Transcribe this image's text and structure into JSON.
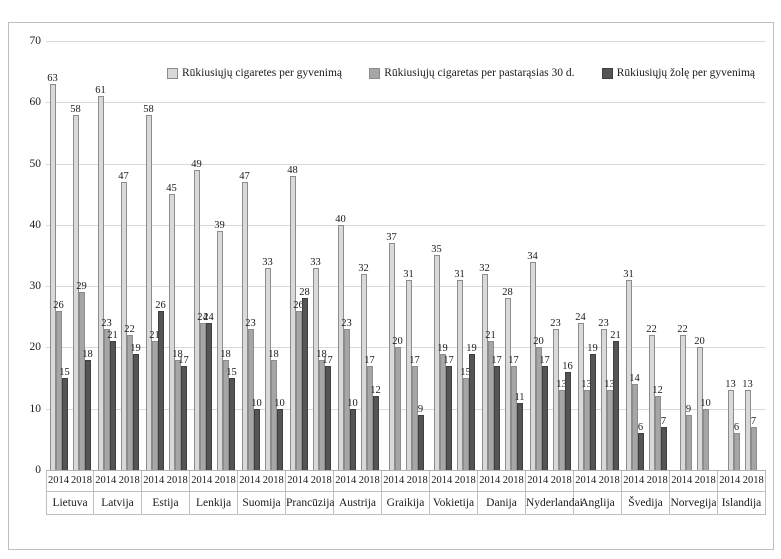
{
  "chart_data": {
    "type": "bar",
    "title": "",
    "xlabel": "",
    "ylabel": "",
    "ylim": [
      0,
      70
    ],
    "y_ticks": [
      0,
      10,
      20,
      30,
      40,
      50,
      60,
      70
    ],
    "grid": "horizontal",
    "legend_position": "top-inside",
    "years": [
      "2014",
      "2018"
    ],
    "series": [
      {
        "name": "Rūkiusiųjų cigaretes per gyvenimą",
        "color": "#d9d9d9",
        "border": "#8c8c8c"
      },
      {
        "name": "Rūkiusiųjų cigaretas per pastarąsias 30 d.",
        "color": "#a6a6a6",
        "border": "#8c8c8c"
      },
      {
        "name": "Rūkiusiųjų žolę per gyvenimą",
        "color": "#545454",
        "border": "#3f3f3f"
      }
    ],
    "groups": [
      {
        "country": "Lietuva",
        "data": {
          "2014": [
            63,
            26,
            15
          ],
          "2018": [
            58,
            29,
            18
          ]
        }
      },
      {
        "country": "Latvija",
        "data": {
          "2014": [
            61,
            23,
            21
          ],
          "2018": [
            47,
            22,
            19
          ]
        }
      },
      {
        "country": "Estija",
        "data": {
          "2014": [
            58,
            21,
            26
          ],
          "2018": [
            45,
            18,
            17
          ]
        }
      },
      {
        "country": "Lenkija",
        "data": {
          "2014": [
            49,
            24,
            24
          ],
          "2018": [
            39,
            18,
            15
          ]
        }
      },
      {
        "country": "Suomija",
        "data": {
          "2014": [
            47,
            23,
            10
          ],
          "2018": [
            33,
            18,
            10
          ]
        }
      },
      {
        "country": "Prancūzija",
        "data": {
          "2014": [
            48,
            26,
            28
          ],
          "2018": [
            33,
            18,
            17
          ]
        }
      },
      {
        "country": "Austrija",
        "data": {
          "2014": [
            40,
            23,
            10
          ],
          "2018": [
            32,
            17,
            12
          ]
        }
      },
      {
        "country": "Graikija",
        "data": {
          "2014": [
            37,
            20,
            null
          ],
          "2018": [
            31,
            17,
            9
          ]
        }
      },
      {
        "country": "Vokietija",
        "data": {
          "2014": [
            35,
            19,
            17
          ],
          "2018": [
            31,
            15,
            19
          ]
        }
      },
      {
        "country": "Danija",
        "data": {
          "2014": [
            32,
            21,
            17
          ],
          "2018": [
            28,
            17,
            11
          ]
        }
      },
      {
        "country": "Nyderlandai",
        "data": {
          "2014": [
            34,
            20,
            17
          ],
          "2018": [
            23,
            13,
            16
          ]
        }
      },
      {
        "country": "Anglija",
        "data": {
          "2014": [
            24,
            13,
            19
          ],
          "2018": [
            23,
            13,
            21
          ]
        }
      },
      {
        "country": "Švedija",
        "data": {
          "2014": [
            31,
            14,
            6
          ],
          "2018": [
            22,
            12,
            7
          ]
        }
      },
      {
        "country": "Norvegija",
        "data": {
          "2014": [
            22,
            9,
            null
          ],
          "2018": [
            20,
            10,
            null
          ]
        }
      },
      {
        "country": "Islandija",
        "data": {
          "2014": [
            13,
            6,
            null
          ],
          "2018": [
            13,
            7,
            null
          ]
        }
      }
    ]
  }
}
